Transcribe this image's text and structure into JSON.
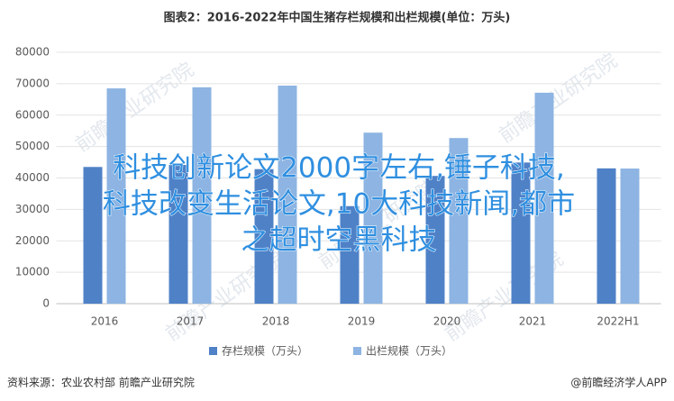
{
  "chart_data": {
    "type": "bar",
    "title": "图表2：2016-2022年中国生猪存栏规模和出栏规模(单位：万头)",
    "categories": [
      "2016",
      "2017",
      "2018",
      "2019",
      "2020",
      "2021",
      "2022H1"
    ],
    "series": [
      {
        "name": "存栏规模（万头）",
        "color": "#4f81c7",
        "values": [
          43504,
          44159,
          42817,
          31041,
          40650,
          44922,
          43057
        ]
      },
      {
        "name": "出栏规模（万头）",
        "color": "#8db4e2",
        "values": [
          68502,
          68861,
          69382,
          54419,
          52704,
          67128,
          43000
        ]
      }
    ],
    "ylim": [
      0,
      80000
    ],
    "yticks": [
      0,
      10000,
      20000,
      30000,
      40000,
      50000,
      60000,
      70000,
      80000
    ],
    "grid": true,
    "legend": "bottom",
    "source": "资料来源：农业农村部 前瞻产业研究院",
    "credit": "@前瞻经济学人APP",
    "watermark": "前瞻产业研究院",
    "overlay": [
      "科技创新论文2000字左右,锤子科技,",
      "科技改变生活论文,10大科技新闻,都市",
      "之超时空黑科技"
    ]
  }
}
